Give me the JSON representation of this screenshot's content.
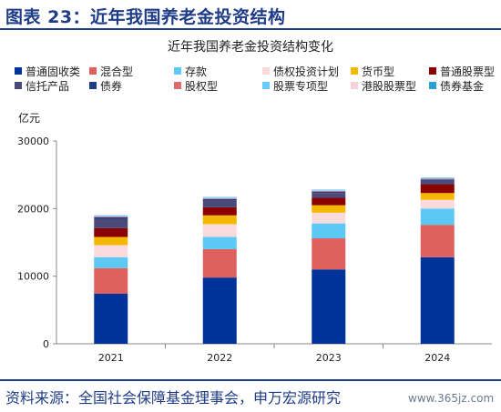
{
  "header": {
    "title": "图表 23：近年我国养老金投资结构"
  },
  "footer": {
    "source": "资料来源：全国社会保障基金理事会，申万宏源研究",
    "watermark": "www.365jz.com"
  },
  "chart_data": {
    "type": "bar",
    "stacked": true,
    "title": "近年我国养老金投资结构变化",
    "ylabel": "亿元",
    "xlabel": "",
    "ylim": [
      0,
      30000
    ],
    "yticks": [
      0,
      10000,
      20000,
      30000
    ],
    "grid": false,
    "legend_position": "top",
    "categories": [
      "2021",
      "2022",
      "2023",
      "2024"
    ],
    "series": [
      {
        "name": "普通固收类",
        "color": "#003399",
        "values": [
          7400,
          9800,
          11000,
          12800
        ]
      },
      {
        "name": "混合型",
        "color": "#e06060",
        "values": [
          3800,
          4200,
          4600,
          4800
        ]
      },
      {
        "name": "存款",
        "color": "#5bc8f5",
        "values": [
          1600,
          1800,
          2200,
          2400
        ]
      },
      {
        "name": "债权投资计划",
        "color": "#fadadd",
        "values": [
          1800,
          1900,
          1600,
          1300
        ]
      },
      {
        "name": "货币型",
        "color": "#f5b800",
        "values": [
          1200,
          1300,
          1100,
          1000
        ]
      },
      {
        "name": "普通股票型",
        "color": "#8b0000",
        "values": [
          1300,
          1200,
          1100,
          1300
        ]
      },
      {
        "name": "信托产品",
        "color": "#4a4a7a",
        "values": [
          1400,
          1000,
          700,
          500
        ]
      },
      {
        "name": "债券",
        "color": "#1f3c88",
        "values": [
          200,
          200,
          200,
          200
        ]
      },
      {
        "name": "股权型",
        "color": "#e06a6a",
        "values": [
          100,
          100,
          100,
          100
        ]
      },
      {
        "name": "股票专项型",
        "color": "#66ccff",
        "values": [
          100,
          100,
          100,
          100
        ]
      },
      {
        "name": "港股股票型",
        "color": "#f8d0d8",
        "values": [
          50,
          50,
          50,
          50
        ]
      },
      {
        "name": "债券基金",
        "color": "#2a9fd6",
        "values": [
          50,
          50,
          50,
          50
        ]
      }
    ]
  }
}
